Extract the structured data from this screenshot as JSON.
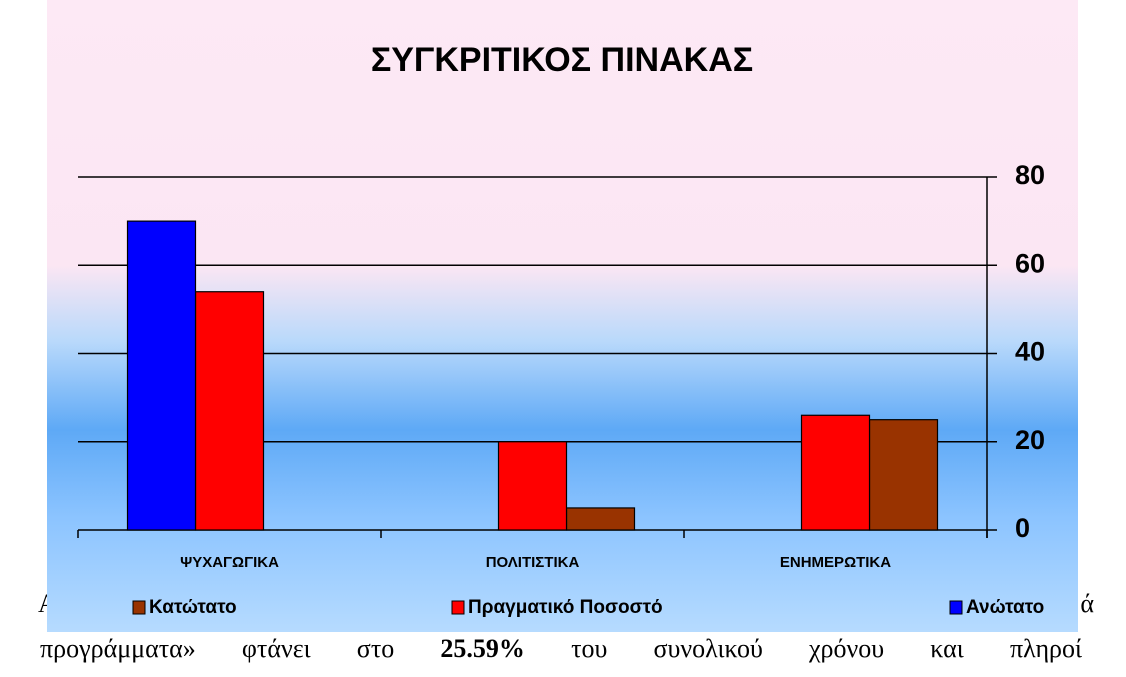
{
  "chart_data": {
    "type": "bar",
    "title": "ΣΥΓΚΡΙΤΙΚΟΣ ΠΙΝΑΚΑΣ",
    "categories": [
      "ΨΥΧΑΓΩΓΙΚΑ",
      "ΠΟΛΙΤΙΣΤΙΚΑ",
      "ΕΝΗΜΕΡΩΤΙΚΑ"
    ],
    "series": [
      {
        "name": "Κατώτατο",
        "color": "#993300",
        "values": [
          null,
          5,
          25
        ]
      },
      {
        "name": "Πραγματικό Ποσοστό",
        "color": "#ff0000",
        "values": [
          54,
          20,
          26
        ]
      },
      {
        "name": "Ανώτατο",
        "color": "#0000ff",
        "values": [
          70,
          null,
          null
        ]
      }
    ],
    "ylim": [
      0,
      80
    ],
    "yticks": [
      0,
      20,
      40,
      60,
      80
    ],
    "grid": true,
    "legend": "bottom"
  },
  "document": {
    "line1_start": "Απ",
    "line1_end": "ά",
    "line2": [
      "προγράμματα» φτάνει στο ",
      "25.59%",
      " του συνολικού χρόνου και πληροί"
    ]
  }
}
